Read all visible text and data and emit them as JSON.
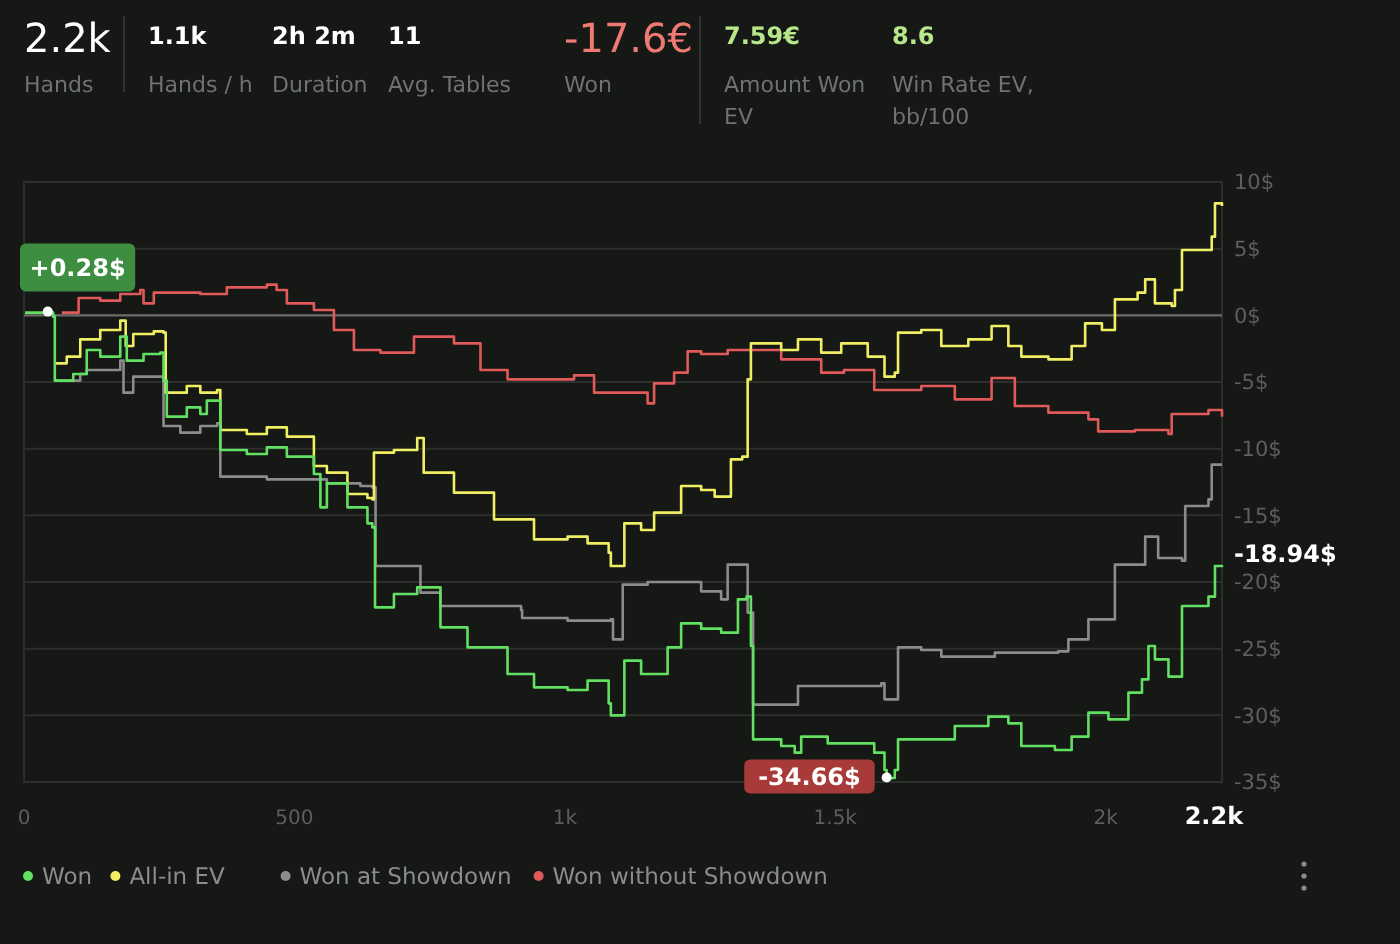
{
  "chart_data": [
    {
      "type": "other",
      "annotations": [
        "2.2k",
        "Hands",
        "1.1k",
        "Hands / h",
        "2h 2m",
        "Duration",
        "11",
        "Avg. Tables",
        "-17.6€",
        "Won",
        "7.59€",
        "Amount Won EV",
        "8.6",
        "Win Rate EV, bb/100"
      ]
    },
    {
      "type": "step",
      "xlim": [
        0,
        2215
      ],
      "ylim": [
        -35,
        10
      ],
      "xticks": [
        0,
        500,
        {
          "value": 1000,
          "label": "1k"
        },
        {
          "value": 1500,
          "label": "1.5k"
        },
        {
          "value": 2000,
          "label": "2k"
        },
        {
          "value": 2200,
          "label": "2.2k"
        }
      ],
      "yticks": [
        {
          "value": -35,
          "label": "-35$"
        },
        {
          "value": -30,
          "label": "-30$"
        },
        {
          "value": -25,
          "label": "-25$"
        },
        {
          "value": -20,
          "label": "-20$"
        },
        {
          "value": -15,
          "label": "-15$"
        },
        {
          "value": -10,
          "label": "-10$"
        },
        {
          "value": -5,
          "label": "-5$"
        },
        {
          "value": 0,
          "label": "0$"
        },
        {
          "value": 5,
          "label": "5$"
        },
        {
          "value": 10,
          "label": "10$"
        }
      ],
      "grid": "y",
      "legend": "bottom",
      "marker": "none",
      "line_style": "solid",
      "ref_lines": [
        {
          "axis": "y",
          "value": 0,
          "color": "#6a6a6a"
        }
      ],
      "annotations": [
        {
          "text": "+0.28$",
          "x": 44,
          "y": 0.28
        },
        {
          "text": "-34.66$",
          "x": 1595,
          "y": -34.66
        },
        {
          "text": "-18.94$",
          "x": 2215,
          "y": -18.94
        }
      ],
      "series": [
        {
          "name": "Won",
          "color": "#62e062",
          "x": [
            2,
            42,
            54,
            57,
            91,
            116,
            141,
            178,
            190,
            221,
            252,
            258,
            264,
            301,
            326,
            338,
            357,
            363,
            412,
            449,
            486,
            536,
            548,
            560,
            598,
            635,
            644,
            649,
            684,
            727,
            770,
            820,
            894,
            943,
            1005,
            1042,
            1081,
            1085,
            1104,
            1110,
            1141,
            1190,
            1215,
            1252,
            1289,
            1320,
            1336,
            1344,
            1348,
            1400,
            1425,
            1437,
            1486,
            1572,
            1591,
            1595,
            1610,
            1616,
            1659,
            1721,
            1783,
            1820,
            1844,
            1906,
            1937,
            1968,
            2005,
            2042,
            2067,
            2079,
            2091,
            2116,
            2128,
            2141,
            2190,
            2202,
            2215
          ],
          "values": [
            0.2,
            0.2,
            -0.1,
            -4.9,
            -4.4,
            -2.6,
            -3.1,
            -1.6,
            -3.4,
            -2.9,
            -2.8,
            -4.9,
            -7.6,
            -6.9,
            -7.4,
            -6.4,
            -6.4,
            -10.1,
            -10.4,
            -9.9,
            -10.6,
            -11.9,
            -14.4,
            -12.6,
            -14.4,
            -15.6,
            -15.9,
            -21.9,
            -20.9,
            -20.4,
            -23.4,
            -24.9,
            -26.9,
            -27.9,
            -28.1,
            -27.4,
            -29.1,
            -30,
            -30,
            -25.9,
            -26.9,
            -24.9,
            -23.1,
            -23.5,
            -23.8,
            -21.3,
            -21.1,
            -24.8,
            -31.8,
            -32.3,
            -32.8,
            -31.6,
            -32.1,
            -32.8,
            -34.1,
            -34.7,
            -34.1,
            -31.8,
            -31.8,
            -30.8,
            -30.1,
            -30.6,
            -32.3,
            -32.6,
            -31.6,
            -29.8,
            -30.3,
            -28.3,
            -27.3,
            -24.8,
            -25.8,
            -27.1,
            -27.1,
            -21.8,
            -21.1,
            -18.8,
            -18.9
          ]
        },
        {
          "name": "All-in EV",
          "color": "#f0ee62",
          "x": [
            57,
            79,
            104,
            141,
            178,
            188,
            202,
            240,
            258,
            262,
            301,
            326,
            357,
            363,
            412,
            449,
            486,
            536,
            560,
            598,
            635,
            644,
            647,
            684,
            727,
            739,
            795,
            869,
            943,
            1005,
            1042,
            1081,
            1085,
            1104,
            1110,
            1141,
            1165,
            1215,
            1252,
            1277,
            1307,
            1328,
            1338,
            1344,
            1400,
            1431,
            1474,
            1511,
            1560,
            1591,
            1610,
            1616,
            1659,
            1696,
            1746,
            1789,
            1820,
            1844,
            1894,
            1937,
            1962,
            1993,
            2017,
            2059,
            2073,
            2091,
            2122,
            2128,
            2141,
            2196,
            2202,
            2208,
            2215
          ],
          "values": [
            -3.6,
            -3.1,
            -1.8,
            -1.1,
            -0.4,
            -2.3,
            -1.4,
            -1.2,
            -1.3,
            -5.8,
            -5.3,
            -5.8,
            -5.6,
            -8.6,
            -8.9,
            -8.4,
            -9.1,
            -11.3,
            -11.8,
            -13.4,
            -13.7,
            -13.8,
            -10.3,
            -10.1,
            -9.2,
            -11.8,
            -13.3,
            -15.3,
            -16.8,
            -16.6,
            -17.1,
            -17.8,
            -18.8,
            -18.8,
            -15.6,
            -16.1,
            -14.8,
            -12.8,
            -13.1,
            -13.6,
            -10.8,
            -10.6,
            -4.8,
            -2.1,
            -2.6,
            -1.8,
            -2.8,
            -2.1,
            -3.1,
            -4.6,
            -4.3,
            -1.3,
            -1.1,
            -2.3,
            -1.8,
            -0.8,
            -2.3,
            -3.1,
            -3.3,
            -2.3,
            -0.6,
            -1.1,
            1.2,
            1.7,
            2.7,
            0.9,
            0.7,
            1.9,
            4.9,
            5.9,
            8.4,
            8.4,
            8.2
          ]
        },
        {
          "name": "Won at Showdown",
          "color": "#8c8c8c",
          "x": [
            57,
            104,
            116,
            178,
            184,
            202,
            252,
            258,
            289,
            326,
            357,
            363,
            449,
            548,
            560,
            622,
            644,
            650,
            727,
            733,
            770,
            919,
            921,
            1005,
            1085,
            1089,
            1104,
            1107,
            1153,
            1252,
            1289,
            1301,
            1333,
            1338,
            1348,
            1425,
            1431,
            1585,
            1591,
            1612,
            1616,
            1659,
            1696,
            1795,
            1912,
            1931,
            1968,
            2017,
            2059,
            2073,
            2091,
            2097,
            2141,
            2147,
            2190,
            2196,
            2215
          ],
          "values": [
            -4.9,
            -4.4,
            -4.1,
            -3.4,
            -5.8,
            -4.6,
            -4.6,
            -8.3,
            -8.8,
            -8.3,
            -8.1,
            -12.1,
            -12.3,
            -12.3,
            -12.6,
            -12.8,
            -12.9,
            -18.8,
            -18.8,
            -20.8,
            -21.8,
            -22.1,
            -22.7,
            -22.9,
            -22.8,
            -24.3,
            -24.3,
            -20.2,
            -20,
            -20.7,
            -21.3,
            -18.7,
            -18.7,
            -22.3,
            -29.2,
            -29.2,
            -27.8,
            -27.6,
            -28.8,
            -28.8,
            -24.9,
            -25.1,
            -25.6,
            -25.3,
            -25.2,
            -24.3,
            -22.8,
            -18.7,
            -18.7,
            -16.6,
            -16.6,
            -18.2,
            -18.4,
            -14.3,
            -13.8,
            -11.2,
            -11.2
          ]
        },
        {
          "name": "Won without Showdown",
          "color": "#e05a5a",
          "x": [
            70,
            101,
            141,
            178,
            215,
            221,
            240,
            326,
            375,
            449,
            467,
            486,
            536,
            573,
            610,
            659,
            721,
            795,
            844,
            894,
            943,
            1017,
            1054,
            1104,
            1153,
            1165,
            1202,
            1227,
            1252,
            1301,
            1338,
            1400,
            1474,
            1516,
            1572,
            1659,
            1721,
            1789,
            1832,
            1894,
            1968,
            1986,
            2054,
            2116,
            2122,
            2190,
            2215
          ],
          "values": [
            0.2,
            1.3,
            1.1,
            1.6,
            1.9,
            0.9,
            1.7,
            1.6,
            2.1,
            2.3,
            1.9,
            0.9,
            0.4,
            -1.1,
            -2.6,
            -2.8,
            -1.6,
            -2.1,
            -4.1,
            -4.8,
            -4.8,
            -4.5,
            -5.8,
            -5.8,
            -6.6,
            -5.1,
            -4.3,
            -2.7,
            -2.9,
            -2.6,
            -2.6,
            -3.3,
            -4.3,
            -4.1,
            -5.6,
            -5.3,
            -6.3,
            -4.7,
            -6.8,
            -7.3,
            -7.8,
            -8.7,
            -8.6,
            -8.9,
            -7.4,
            -7.1,
            -7.6
          ]
        }
      ]
    }
  ]
}
